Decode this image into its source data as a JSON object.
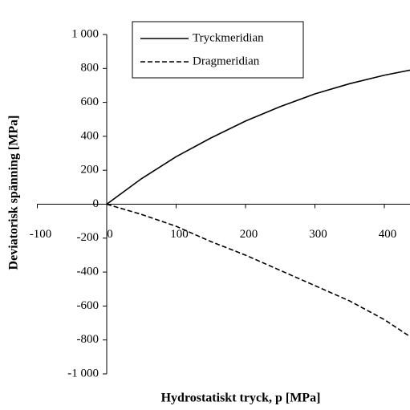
{
  "chart_data": {
    "type": "line",
    "xlabel": "Hydrostatiskt tryck, p [MPa]",
    "ylabel": "Deviatorisk spänning [MPa]",
    "x": [
      0,
      50,
      100,
      150,
      200,
      250,
      300,
      350,
      400,
      437
    ],
    "series": [
      {
        "name": "Tryckmeridian",
        "color": "#000000",
        "dash": "solid",
        "values": [
          0,
          150,
          280,
          390,
          490,
          575,
          650,
          710,
          760,
          790
        ]
      },
      {
        "name": "Dragmeridian",
        "color": "#000000",
        "dash": "dashed",
        "values": [
          0,
          -60,
          -130,
          -220,
          -300,
          -390,
          -480,
          -570,
          -680,
          -780
        ]
      }
    ],
    "xlim": [
      -100,
      437
    ],
    "xticks": [
      -100,
      0,
      100,
      200,
      300,
      400
    ],
    "ylim": [
      -1000,
      1000
    ],
    "yticks": [
      {
        "value": -1000,
        "label": "-1 000"
      },
      -800,
      -600,
      -400,
      -200,
      0,
      200,
      400,
      600,
      800,
      {
        "value": 1000,
        "label": "1 000"
      }
    ],
    "legend": "upper left"
  }
}
